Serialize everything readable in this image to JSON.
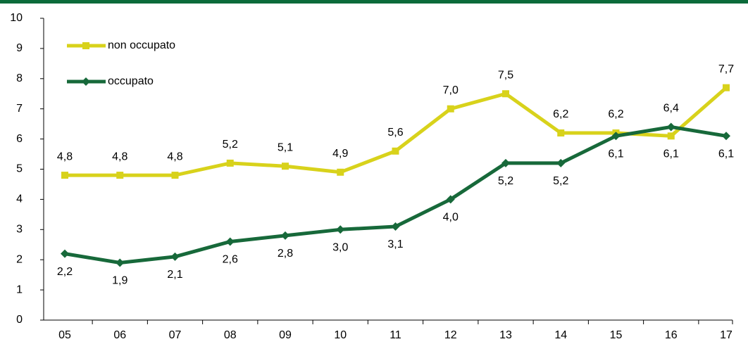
{
  "chart_data": {
    "type": "line",
    "categories": [
      "05",
      "06",
      "07",
      "08",
      "09",
      "10",
      "11",
      "12",
      "13",
      "14",
      "15",
      "16",
      "17"
    ],
    "series": [
      {
        "name": "non occupato",
        "color": "#d8d21b",
        "marker": "square",
        "values": [
          4.8,
          4.8,
          4.8,
          5.2,
          5.1,
          4.9,
          5.6,
          7.0,
          7.5,
          6.2,
          6.2,
          6.1,
          7.7
        ],
        "value_labels": [
          "4,8",
          "4,8",
          "4,8",
          "5,2",
          "5,1",
          "4,9",
          "5,6",
          "7,0",
          "7,5",
          "6,2",
          "6,2",
          "6,1",
          "7,7"
        ]
      },
      {
        "name": "occupato",
        "color": "#17693a",
        "marker": "diamond",
        "values": [
          2.2,
          1.9,
          2.1,
          2.6,
          2.8,
          3.0,
          3.1,
          4.0,
          5.2,
          5.2,
          6.1,
          6.4,
          6.1
        ],
        "value_labels": [
          "2,2",
          "1,9",
          "2,1",
          "2,6",
          "2,8",
          "3,0",
          "3,1",
          "4,0",
          "5,2",
          "5,2",
          "6,1",
          "6,4",
          "6,1"
        ]
      }
    ],
    "ylim": [
      0,
      10
    ],
    "yticks": [
      0,
      1,
      2,
      3,
      4,
      5,
      6,
      7,
      8,
      9,
      10
    ],
    "legend": "upper left"
  }
}
